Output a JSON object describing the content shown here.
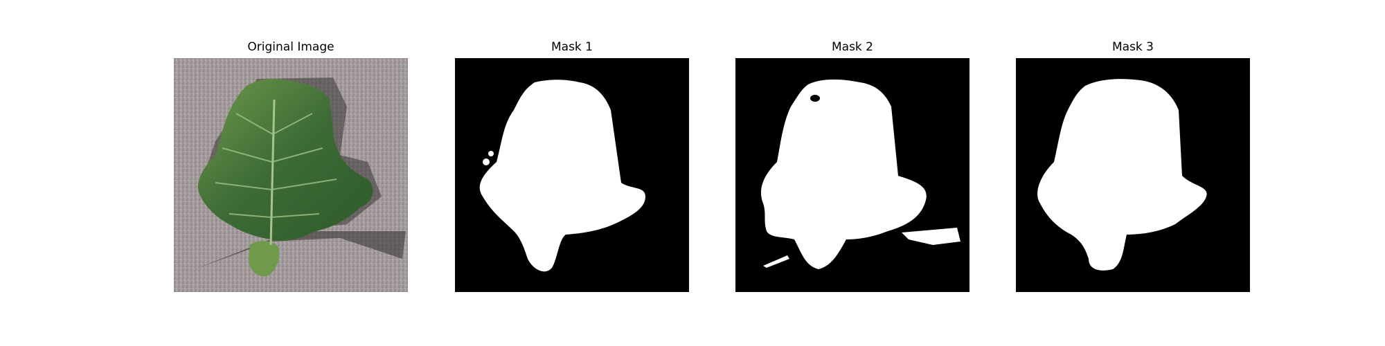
{
  "panels": [
    {
      "title": "Original Image",
      "kind": "photo"
    },
    {
      "title": "Mask 1",
      "kind": "mask"
    },
    {
      "title": "Mask 2",
      "kind": "mask"
    },
    {
      "title": "Mask 3",
      "kind": "mask"
    }
  ],
  "colors": {
    "background": "#ffffff",
    "mask_background": "#000000",
    "mask_foreground": "#ffffff",
    "leaf_green": "#4f7a3a",
    "surface_gray": "#a39b9b"
  }
}
